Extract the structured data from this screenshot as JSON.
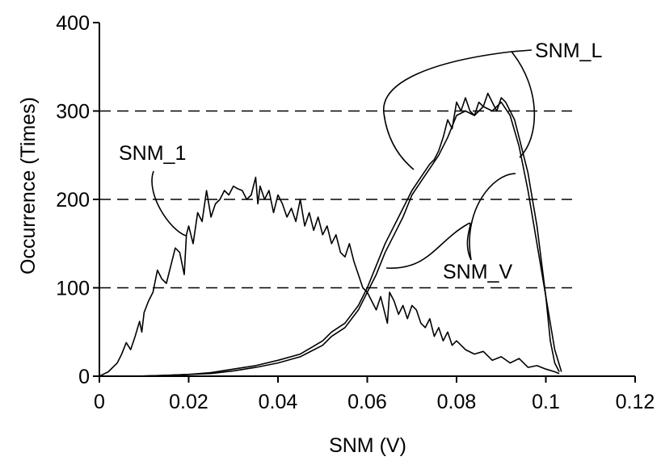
{
  "chart_data": {
    "type": "line",
    "xlabel": "SNM (V)",
    "ylabel": "Occurrence (Times)",
    "xlim": [
      0,
      0.12
    ],
    "ylim": [
      0,
      400
    ],
    "x_ticks": [
      "0",
      "0.02",
      "0.04",
      "0.06",
      "0.08",
      "0.1",
      "0.12"
    ],
    "y_ticks": [
      "0",
      "100",
      "200",
      "300",
      "400"
    ],
    "grid": "horizontal dashed at 100, 200, 300",
    "series": [
      {
        "name": "SNM_1",
        "x": [
          0,
          0.002,
          0.004,
          0.005,
          0.006,
          0.007,
          0.008,
          0.009,
          0.0095,
          0.01,
          0.011,
          0.012,
          0.013,
          0.014,
          0.015,
          0.016,
          0.017,
          0.018,
          0.019,
          0.0195,
          0.02,
          0.021,
          0.022,
          0.023,
          0.024,
          0.025,
          0.026,
          0.027,
          0.028,
          0.029,
          0.03,
          0.031,
          0.032,
          0.033,
          0.034,
          0.035,
          0.0355,
          0.036,
          0.037,
          0.038,
          0.039,
          0.04,
          0.041,
          0.042,
          0.043,
          0.044,
          0.045,
          0.046,
          0.047,
          0.048,
          0.049,
          0.05,
          0.051,
          0.052,
          0.053,
          0.054,
          0.055,
          0.056,
          0.057,
          0.058,
          0.059,
          0.06,
          0.061,
          0.062,
          0.063,
          0.064,
          0.0645,
          0.065,
          0.066,
          0.067,
          0.068,
          0.069,
          0.07,
          0.071,
          0.072,
          0.073,
          0.074,
          0.075,
          0.076,
          0.077,
          0.078,
          0.079,
          0.08,
          0.082,
          0.084,
          0.086,
          0.088,
          0.09,
          0.092,
          0.094,
          0.096,
          0.098,
          0.1,
          0.102,
          0.103
        ],
        "y": [
          0,
          5,
          15,
          25,
          38,
          30,
          45,
          62,
          50,
          72,
          85,
          95,
          120,
          110,
          105,
          125,
          145,
          140,
          115,
          160,
          170,
          150,
          185,
          175,
          210,
          180,
          195,
          200,
          210,
          205,
          215,
          212,
          210,
          200,
          205,
          225,
          195,
          215,
          200,
          210,
          185,
          205,
          195,
          180,
          190,
          175,
          200,
          170,
          185,
          165,
          180,
          160,
          170,
          150,
          160,
          140,
          135,
          150,
          130,
          115,
          100,
          95,
          85,
          75,
          90,
          70,
          60,
          95,
          85,
          70,
          80,
          65,
          80,
          75,
          60,
          55,
          65,
          45,
          55,
          40,
          50,
          35,
          40,
          30,
          25,
          28,
          18,
          22,
          15,
          20,
          10,
          12,
          8,
          5,
          3
        ]
      },
      {
        "name": "SNM_L",
        "x": [
          0.008,
          0.015,
          0.02,
          0.025,
          0.03,
          0.035,
          0.04,
          0.045,
          0.05,
          0.052,
          0.055,
          0.058,
          0.06,
          0.062,
          0.064,
          0.066,
          0.068,
          0.07,
          0.072,
          0.074,
          0.075,
          0.076,
          0.077,
          0.078,
          0.079,
          0.08,
          0.081,
          0.082,
          0.083,
          0.084,
          0.085,
          0.086,
          0.087,
          0.088,
          0.089,
          0.09,
          0.091,
          0.092,
          0.093,
          0.094,
          0.095,
          0.096,
          0.097,
          0.098,
          0.099,
          0.1,
          0.101,
          0.102,
          0.103
        ],
        "y": [
          0,
          1,
          2,
          4,
          8,
          12,
          18,
          25,
          40,
          50,
          60,
          80,
          100,
          125,
          150,
          170,
          190,
          210,
          225,
          240,
          245,
          255,
          270,
          290,
          280,
          310,
          300,
          315,
          300,
          295,
          310,
          305,
          320,
          310,
          300,
          315,
          310,
          300,
          290,
          270,
          250,
          230,
          200,
          170,
          130,
          90,
          40,
          15,
          5
        ]
      },
      {
        "name": "SNM_V",
        "x": [
          0.008,
          0.015,
          0.02,
          0.025,
          0.03,
          0.035,
          0.04,
          0.045,
          0.05,
          0.052,
          0.055,
          0.058,
          0.06,
          0.062,
          0.064,
          0.066,
          0.068,
          0.07,
          0.072,
          0.074,
          0.076,
          0.078,
          0.08,
          0.082,
          0.084,
          0.086,
          0.088,
          0.09,
          0.092,
          0.094,
          0.096,
          0.098,
          0.1,
          0.102,
          0.1035
        ],
        "y": [
          0,
          1,
          2,
          3,
          6,
          10,
          15,
          22,
          35,
          45,
          55,
          75,
          95,
          115,
          140,
          160,
          180,
          205,
          220,
          235,
          250,
          270,
          295,
          300,
          295,
          305,
          300,
          310,
          295,
          260,
          210,
          150,
          90,
          30,
          5
        ]
      }
    ]
  }
}
